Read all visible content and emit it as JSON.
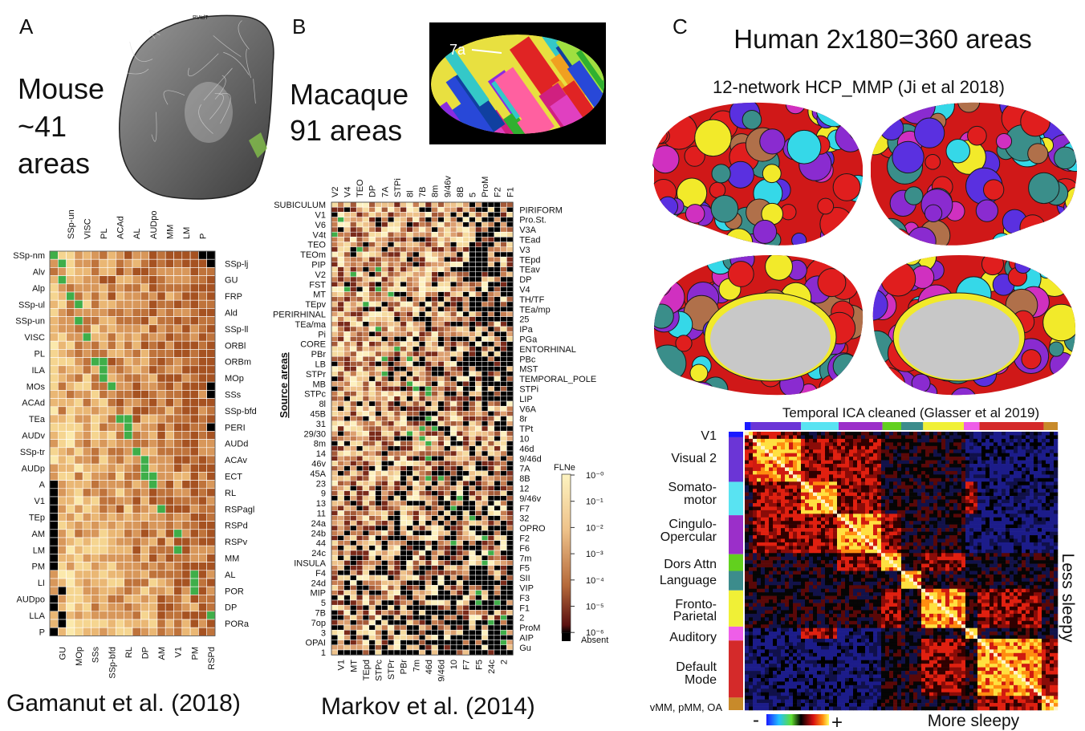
{
  "panel_a": {
    "letter": "A",
    "title_lines": [
      "Mouse",
      "~41",
      "areas"
    ],
    "image_label": "PVtdT",
    "columns_top": [
      "SSp-un",
      "VISC",
      "PL",
      "ACAd",
      "AL",
      "AUDpo",
      "MM",
      "LM",
      "P"
    ],
    "columns_bottom": [
      "GU",
      "MOp",
      "SSs",
      "SSp-bfd",
      "RL",
      "DP",
      "AM",
      "V1",
      "PM",
      "RSPd"
    ],
    "rows_left": [
      "SSp-nm",
      "Alv",
      "Alp",
      "SSp-ul",
      "SSp-un",
      "VISC",
      "PL",
      "ILA",
      "MOs",
      "ACAd",
      "TEa",
      "AUDv",
      "SSp-tr",
      "AUDp",
      "A",
      "V1",
      "TEp",
      "AM",
      "LM",
      "PM",
      "LI",
      "AUDpo",
      "LLA",
      "P"
    ],
    "rows_right": [
      "SSp-lj",
      "GU",
      "FRP",
      "Ald",
      "SSp-ll",
      "ORBl",
      "ORBm",
      "MOp",
      "SSs",
      "SSp-bfd",
      "PERI",
      "AUDd",
      "ACAv",
      "ECT",
      "RL",
      "RSPagl",
      "RSPd",
      "RSPv",
      "MM",
      "AL",
      "POR",
      "DP",
      "PORa"
    ],
    "citation": "Gamanut et al. (2018)"
  },
  "panel_b": {
    "letter": "B",
    "title_lines": [
      "Macaque",
      "91 areas"
    ],
    "image_label": "7a",
    "columns_top": [
      "V2",
      "V4",
      "TEO",
      "DP",
      "7A",
      "STPi",
      "8l",
      "7B",
      "8m",
      "9/46v",
      "8B",
      "5",
      "ProM",
      "F2",
      "F1"
    ],
    "columns_bottom": [
      "V1",
      "MT",
      "TEpd",
      "STPc",
      "STPr",
      "PBr",
      "7m",
      "46d",
      "9/46d",
      "10",
      "F7",
      "F5",
      "24c",
      "2"
    ],
    "rows_left": [
      "SUBICULUM",
      "V1",
      "V6",
      "V4t",
      "TEO",
      "TEOm",
      "PIP",
      "V2",
      "FST",
      "MT",
      "TEpv",
      "PERIRHINAL",
      "TEa/ma",
      "Pi",
      "CORE",
      "PBr",
      "LB",
      "STPr",
      "MB",
      "STPc",
      "8l",
      "45B",
      "31",
      "29/30",
      "8m",
      "14",
      "46v",
      "45A",
      "23",
      "9",
      "13",
      "11",
      "24a",
      "24b",
      "44",
      "24c",
      "INSULA",
      "F4",
      "24d",
      "MIP",
      "5",
      "7B",
      "7op",
      "3",
      "OPAI",
      "1"
    ],
    "rows_right": [
      "PIRIFORM",
      "Pro.St.",
      "V3A",
      "TEad",
      "V3",
      "TEpd",
      "TEav",
      "DP",
      "V4",
      "TH/TF",
      "TEa/mp",
      "25",
      "IPa",
      "PGa",
      "ENTORHINAL",
      "PBc",
      "MST",
      "TEMPORAL_POLE",
      "STPi",
      "LIP",
      "V6A",
      "8r",
      "TPt",
      "10",
      "46d",
      "9/46d",
      "7A",
      "8B",
      "12",
      "9/46v",
      "F7",
      "32",
      "OPRO",
      "F2",
      "F6",
      "7m",
      "F5",
      "SII",
      "VIP",
      "F3",
      "F1",
      "2",
      "ProM",
      "AIP",
      "Gu"
    ],
    "axis_label": "Source areas",
    "colorbar": {
      "title": "FLNe",
      "ticks": [
        "10⁻⁰",
        "10⁻¹",
        "10⁻²",
        "10⁻³",
        "10⁻⁴",
        "10⁻⁵",
        "10⁻⁶"
      ],
      "absent": "Absent"
    },
    "citation": "Markov et al. (2014)"
  },
  "panel_c": {
    "letter": "C",
    "title": "Human 2x180=360 areas",
    "subtitle": "12-network HCP_MMP (Ji et al 2018)",
    "matrix_title": "Temporal ICA cleaned (Glasser et al 2019)",
    "networks": [
      [
        "V1"
      ],
      [
        "Visual 2"
      ],
      [
        "Somato-",
        "motor"
      ],
      [
        "Cingulo-",
        "Opercular"
      ],
      [
        "Dors Attn"
      ],
      [
        "Language"
      ],
      [
        "Fronto-",
        "Parietal"
      ],
      [
        "Auditory"
      ],
      [
        "Default",
        "Mode"
      ],
      [
        "vMM, pMM, OA"
      ]
    ],
    "right_label": "Less sleepy",
    "bottom_label": "More sleepy",
    "scale_min": "-",
    "scale_max": "+"
  }
}
